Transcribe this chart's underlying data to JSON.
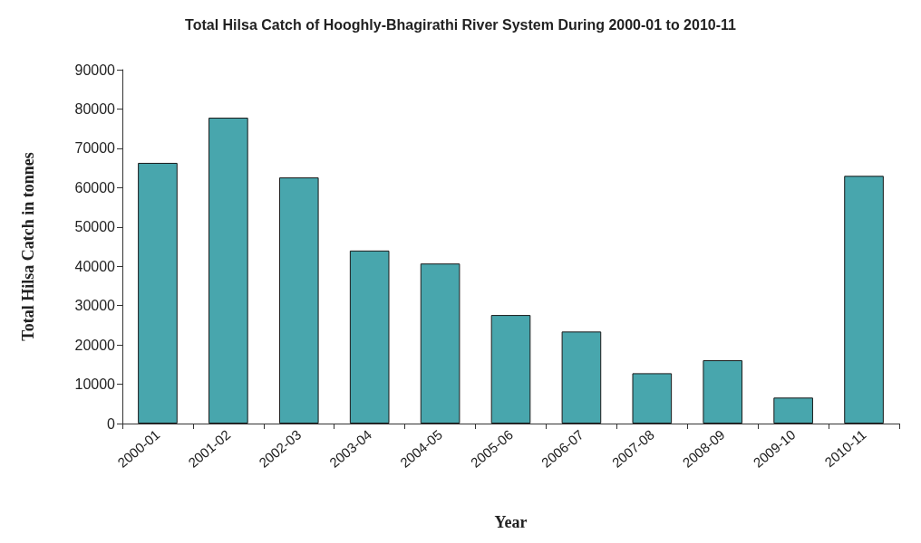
{
  "chart_data": {
    "type": "bar",
    "title": "Total Hilsa Catch of Hooghly-Bhagirathi River System During 2000-01 to 2010-11",
    "xlabel": "Year",
    "ylabel": "Total Hilsa Catch in tonnes",
    "categories": [
      "2000-01",
      "2001-02",
      "2002-03",
      "2003-04",
      "2004-05",
      "2005-06",
      "2006-07",
      "2007-08",
      "2008-09",
      "2009-10",
      "2010-11"
    ],
    "values": [
      66300,
      77800,
      62600,
      44000,
      40700,
      27600,
      23400,
      12800,
      16100,
      6600,
      63000
    ],
    "color": "#48a6ad",
    "ylim": [
      0,
      90000
    ],
    "yticks": [
      0,
      10000,
      20000,
      30000,
      40000,
      50000,
      60000,
      70000,
      80000,
      90000
    ],
    "grid": false
  }
}
